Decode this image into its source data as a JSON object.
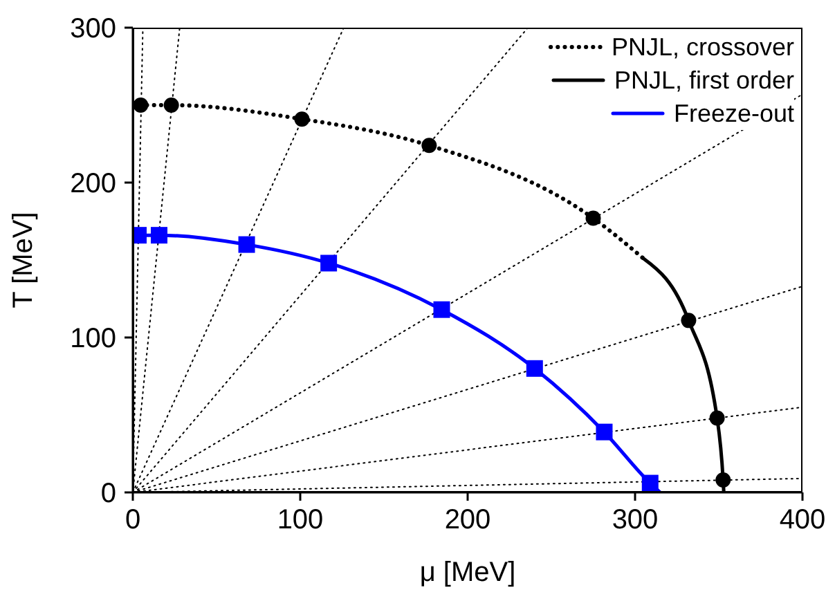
{
  "chart_data": {
    "type": "line",
    "xlabel": "μ [MeV]",
    "ylabel": "T [MeV]",
    "xlim": [
      0,
      400
    ],
    "ylim": [
      0,
      300
    ],
    "xticks": [
      0,
      100,
      200,
      300,
      400
    ],
    "yticks": [
      0,
      100,
      200,
      300
    ],
    "grid": false,
    "legend": "top right",
    "series": [
      {
        "color": "#000000",
        "line_style": "dotted",
        "marker": "none",
        "x": [
          0,
          6
        ],
        "values": [
          0,
          300
        ]
      },
      {
        "color": "#000000",
        "line_style": "dotted",
        "marker": "none",
        "x": [
          0,
          28
        ],
        "values": [
          0,
          300
        ]
      },
      {
        "color": "#000000",
        "line_style": "dotted",
        "marker": "none",
        "x": [
          0,
          126
        ],
        "values": [
          0,
          300
        ]
      },
      {
        "color": "#000000",
        "line_style": "dotted",
        "marker": "none",
        "x": [
          0,
          236
        ],
        "values": [
          0,
          300
        ]
      },
      {
        "color": "#000000",
        "line_style": "dotted",
        "marker": "none",
        "x": [
          0,
          400
        ],
        "values": [
          0,
          257
        ]
      },
      {
        "color": "#000000",
        "line_style": "dotted",
        "marker": "none",
        "x": [
          0,
          400
        ],
        "values": [
          0,
          133
        ]
      },
      {
        "color": "#000000",
        "line_style": "dotted",
        "marker": "none",
        "x": [
          0,
          400
        ],
        "values": [
          0,
          55
        ]
      },
      {
        "color": "#000000",
        "line_style": "dotted",
        "marker": "none",
        "x": [
          0,
          400
        ],
        "values": [
          0,
          9
        ]
      },
      {
        "name": "PNJL, crossover",
        "color": "#000000",
        "line_style": "dotted",
        "marker": "none",
        "x": [
          0,
          4.7,
          23,
          101,
          177,
          275,
          305
        ],
        "values": [
          250,
          250,
          250,
          241,
          224,
          177,
          151
        ]
      },
      {
        "name": "PNJL, first order",
        "color": "#000000",
        "line_style": "solid",
        "marker": "none",
        "x": [
          305,
          332,
          349,
          352.6,
          353
        ],
        "values": [
          151,
          111,
          48,
          8,
          0
        ]
      },
      {
        "name": "Freeze-out",
        "color": "#0000ff",
        "line_style": "solid",
        "marker": "none",
        "x": [
          0,
          3.3,
          15.7,
          68,
          117,
          184.5,
          240,
          281.6,
          309,
          315
        ],
        "values": [
          166,
          166,
          166,
          160,
          148,
          118,
          80,
          39,
          6,
          0
        ]
      },
      {
        "type": "scatter",
        "color": "#000000",
        "marker": "circle",
        "x": [
          4.7,
          23,
          101,
          177,
          275,
          332,
          349,
          352.6
        ],
        "values": [
          250,
          250,
          241,
          224,
          177,
          111,
          48,
          8
        ]
      },
      {
        "type": "scatter",
        "color": "#0000ff",
        "marker": "square",
        "x": [
          3.3,
          15.7,
          68,
          117,
          184.5,
          240,
          281.6,
          309
        ],
        "values": [
          166,
          166,
          160,
          148,
          118,
          80,
          39,
          6
        ]
      }
    ]
  }
}
